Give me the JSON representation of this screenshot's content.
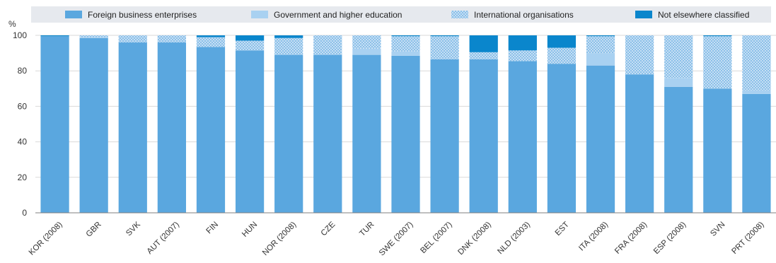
{
  "chart_data": {
    "type": "bar",
    "stacked": true,
    "ylabel": "%",
    "ylim": [
      0,
      100
    ],
    "yticks": [
      0,
      20,
      40,
      60,
      80,
      100
    ],
    "grid": true,
    "legend_position": "top",
    "categories": [
      "KOR (2008)",
      "GBR",
      "SVK",
      "AUT (2007)",
      "FIN",
      "HUN",
      "NOR (2008)",
      "CZE",
      "TUR",
      "SWE (2007)",
      "BEL (2007)",
      "DNK (2008)",
      "NLD (2003)",
      "EST",
      "ITA (2008)",
      "FRA (2008)",
      "ESP (2008)",
      "SVN",
      "PRT (2008)"
    ],
    "series": [
      {
        "name": "Foreign business enterprises",
        "color": "#5aa7df",
        "pattern": "solid",
        "values": [
          99.5,
          98.5,
          96,
          96,
          93.5,
          91.5,
          89,
          89,
          89,
          88.5,
          86.5,
          86.5,
          85.5,
          84,
          83,
          78,
          71,
          70,
          67
        ]
      },
      {
        "name": "Government and higher education",
        "color": "#a9d1f1",
        "pattern": "solid",
        "values": [
          0,
          0.5,
          0,
          0,
          0,
          0,
          0,
          0,
          3.5,
          2.5,
          0,
          0,
          0,
          0,
          7,
          0,
          5,
          0,
          2
        ]
      },
      {
        "name": "International organisations",
        "color": "#cfe4f6",
        "pattern": "hatch",
        "values": [
          0,
          1,
          4,
          4,
          5.5,
          5.5,
          9.5,
          11,
          7.5,
          8.5,
          13,
          4,
          6,
          9,
          9.5,
          22,
          24,
          29.5,
          31
        ]
      },
      {
        "name": "Not elsewhere classified",
        "color": "#0a86cc",
        "pattern": "solid",
        "values": [
          0.5,
          0,
          0,
          0,
          1,
          3,
          1.5,
          0,
          0,
          0.5,
          0.5,
          9.5,
          8.5,
          7,
          0.5,
          0,
          0,
          0.5,
          0
        ]
      }
    ]
  }
}
